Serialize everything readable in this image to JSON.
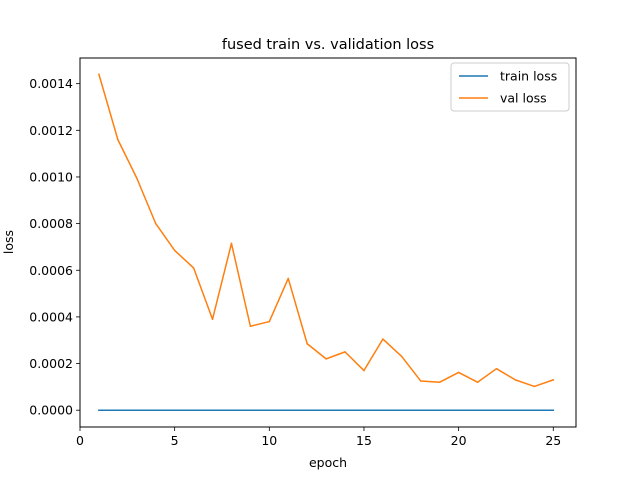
{
  "chart_data": {
    "type": "line",
    "title": "fused train vs. validation loss",
    "xlabel": "epoch",
    "ylabel": "loss",
    "xlim": [
      0,
      26.2
    ],
    "ylim": [
      -7.2e-05,
      0.00151
    ],
    "xticks": [
      0,
      5,
      10,
      15,
      20,
      25
    ],
    "xtick_labels": [
      "0",
      "5",
      "10",
      "15",
      "20",
      "25"
    ],
    "yticks": [
      0,
      0.0002,
      0.0004,
      0.0006,
      0.0008,
      0.001,
      0.0012,
      0.0014
    ],
    "ytick_labels": [
      "0.0000",
      "0.0002",
      "0.0004",
      "0.0006",
      "0.0008",
      "0.0010",
      "0.0012",
      "0.0014"
    ],
    "grid": false,
    "legend_position": "top-right",
    "x": [
      1,
      2,
      3,
      4,
      5,
      6,
      7,
      8,
      9,
      10,
      11,
      12,
      13,
      14,
      15,
      16,
      17,
      18,
      19,
      20,
      21,
      22,
      23,
      24,
      25
    ],
    "series": [
      {
        "name": "train loss",
        "color": "#1f77b4",
        "values": [
          0,
          0,
          0,
          0,
          0,
          0,
          0,
          0,
          0,
          0,
          0,
          0,
          0,
          0,
          0,
          0,
          0,
          0,
          0,
          0,
          0,
          0,
          0,
          0,
          0
        ]
      },
      {
        "name": "val loss",
        "color": "#ff7f0e",
        "values": [
          0.00144,
          0.00116,
          0.000995,
          0.0008,
          0.000685,
          0.00061,
          0.00039,
          0.000715,
          0.00036,
          0.00038,
          0.000565,
          0.000285,
          0.00022,
          0.00025,
          0.00017,
          0.000305,
          0.00023,
          0.000125,
          0.00012,
          0.000162,
          0.00012,
          0.000178,
          0.00013,
          0.000102,
          0.00013
        ]
      }
    ]
  }
}
